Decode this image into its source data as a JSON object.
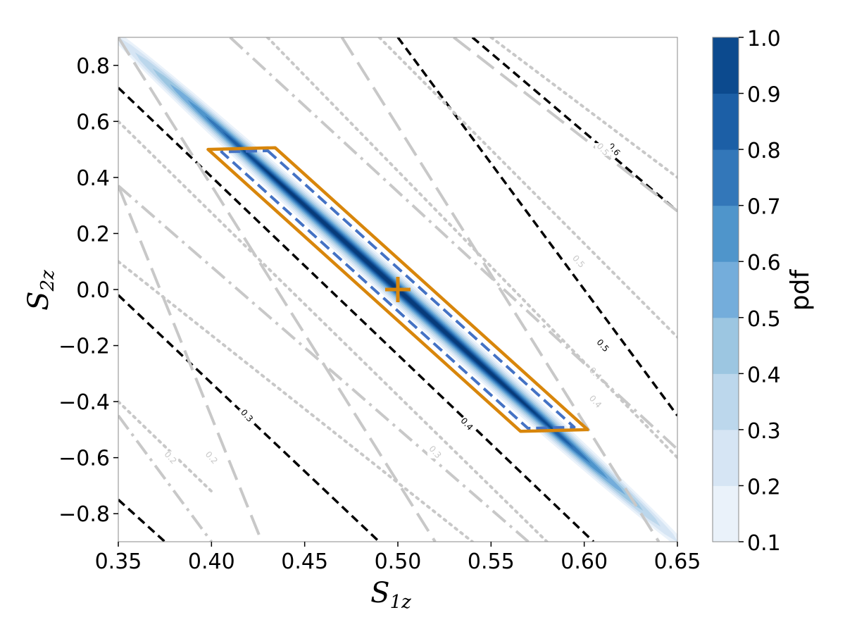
{
  "chart_data": {
    "type": "contour",
    "xlabel_base": "S",
    "xlabel_sub": "1z",
    "ylabel_base": "S",
    "ylabel_sub": "2z",
    "xlim": [
      0.35,
      0.65
    ],
    "ylim": [
      -0.9,
      0.9
    ],
    "xticks": [
      "0.35",
      "0.40",
      "0.45",
      "0.50",
      "0.55",
      "0.60",
      "0.65"
    ],
    "yticks": [
      "−0.8",
      "−0.6",
      "−0.4",
      "−0.2",
      "0.0",
      "0.2",
      "0.4",
      "0.6",
      "0.8"
    ],
    "xtick_values": [
      0.35,
      0.4,
      0.45,
      0.5,
      0.55,
      0.6,
      0.65
    ],
    "ytick_values": [
      -0.8,
      -0.6,
      -0.4,
      -0.2,
      0.0,
      0.2,
      0.4,
      0.6,
      0.8
    ],
    "colorbar": {
      "label": "pdf",
      "levels": [
        0.1,
        0.2,
        0.3,
        0.4,
        0.5,
        0.6,
        0.7,
        0.8,
        0.9,
        1.0
      ],
      "tick_labels": [
        "0.1",
        "0.2",
        "0.3",
        "0.4",
        "0.5",
        "0.6",
        "0.7",
        "0.8",
        "0.9",
        "1.0"
      ],
      "colors": [
        "#eaf2fa",
        "#d6e5f4",
        "#bcd7ec",
        "#9cc6e1",
        "#74addb",
        "#4f95cb",
        "#3377b9",
        "#1c5fa6",
        "#0c4a8e",
        "#083b7a"
      ]
    },
    "injection": {
      "x": 0.5,
      "y": 0.0,
      "color": "#d8860b"
    },
    "posterior_band": {
      "direction": [
        0.3,
        -1.8
      ],
      "half_widths": [
        0.013,
        0.011,
        0.0095,
        0.008,
        0.0067,
        0.0055,
        0.0044,
        0.0034,
        0.0025,
        0.0016
      ]
    },
    "contour_sets": [
      {
        "name": "black-dashed",
        "style": "dashed",
        "color": "#000000",
        "lines": [
          [
            0.35,
            -0.75,
            0.375,
            -0.9
          ],
          [
            0.35,
            -0.02,
            0.49,
            -0.9
          ],
          [
            0.35,
            0.72,
            0.605,
            -0.9
          ],
          [
            0.5,
            0.9,
            0.65,
            -0.45
          ],
          [
            0.54,
            0.9,
            0.65,
            0.28
          ]
        ],
        "labels": [
          {
            "text": "0.3",
            "x": 0.419,
            "y": -0.45
          },
          {
            "text": "0.4",
            "x": 0.537,
            "y": -0.48
          },
          {
            "text": "0.5",
            "x": 0.61,
            "y": -0.2
          },
          {
            "text": "0.6",
            "x": 0.616,
            "y": 0.5
          }
        ]
      },
      {
        "name": "gray-dashdot",
        "style": "dashdot",
        "color": "#c8c8c8",
        "lines": [
          [
            0.35,
            -0.45,
            0.4,
            -0.9
          ],
          [
            0.35,
            0.37,
            0.57,
            -0.9
          ],
          [
            0.41,
            0.9,
            0.65,
            -0.57
          ]
        ],
        "labels": [
          {
            "text": "0.4",
            "x": 0.606,
            "y": -0.3
          }
        ]
      },
      {
        "name": "gray-longdash",
        "style": "longdash",
        "color": "#c8c8c8",
        "lines": [
          [
            0.35,
            0.37,
            0.427,
            -0.9
          ],
          [
            0.35,
            0.9,
            0.52,
            -0.9
          ],
          [
            0.47,
            0.9,
            0.64,
            -0.9
          ],
          [
            0.53,
            0.9,
            0.65,
            0.28
          ]
        ],
        "labels": [
          {
            "text": "0.5",
            "x": 0.61,
            "y": 0.5
          }
        ]
      },
      {
        "name": "gray-dotted",
        "style": "dotted",
        "color": "#c8c8c8",
        "lines": [
          [
            0.35,
            -0.4,
            0.4,
            -0.72
          ],
          [
            0.35,
            0.1,
            0.54,
            -0.9
          ],
          [
            0.35,
            0.6,
            0.58,
            -0.9
          ],
          [
            0.43,
            0.9,
            0.65,
            -0.6
          ],
          [
            0.49,
            0.9,
            0.65,
            -0.17
          ],
          [
            0.55,
            0.9,
            0.65,
            0.4
          ]
        ],
        "labels": [
          {
            "text": "0.2",
            "x": 0.378,
            "y": -0.6
          },
          {
            "text": "0.2",
            "x": 0.4,
            "y": -0.6
          },
          {
            "text": "0.3",
            "x": 0.52,
            "y": -0.58
          },
          {
            "text": "0.4",
            "x": 0.606,
            "y": -0.4
          },
          {
            "text": "0.5",
            "x": 0.597,
            "y": 0.1
          }
        ]
      }
    ],
    "credible_regions": [
      {
        "name": "blue-dashed-region",
        "color": "#4472c4",
        "style": "dashed",
        "half_width": 0.0105,
        "t_range": [
          -0.5,
          0.5
        ]
      },
      {
        "name": "orange-region",
        "color": "#d8860b",
        "style": "solid",
        "half_width": 0.0152,
        "t_range": [
          -0.51,
          0.51
        ]
      }
    ]
  }
}
